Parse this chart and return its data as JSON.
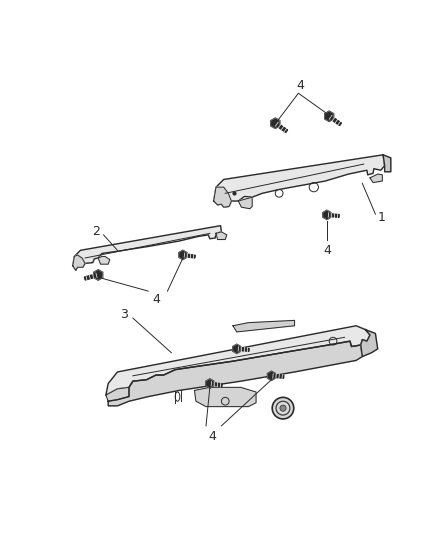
{
  "bg_color": "#ffffff",
  "line_color": "#2a2a2a",
  "fill_top": "#e8e8e8",
  "fill_side": "#c8c8c8",
  "fill_face": "#d4d4d4",
  "fig_width": 4.38,
  "fig_height": 5.33,
  "dpi": 100
}
